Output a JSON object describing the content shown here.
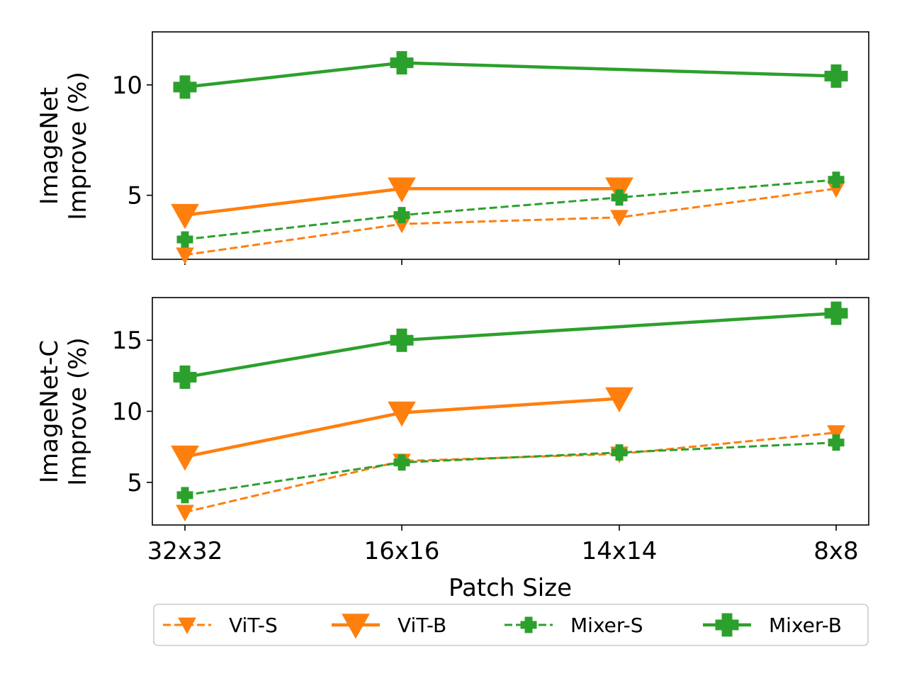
{
  "chart_data": [
    {
      "type": "line",
      "panel": "top",
      "ylabel_lines": [
        "ImageNet",
        "Improve (%)"
      ],
      "categories": [
        "32x32",
        "16x16",
        "14x14",
        "8x8"
      ],
      "ylim": [
        2.1,
        12.4
      ],
      "yticks": [
        5,
        10
      ],
      "grid": false,
      "series": [
        {
          "name": "ViT-S",
          "values": [
            2.3,
            3.7,
            4.0,
            5.3
          ]
        },
        {
          "name": "ViT-B",
          "values": [
            4.1,
            5.3,
            5.3,
            null
          ]
        },
        {
          "name": "Mixer-S",
          "values": [
            3.0,
            4.1,
            4.9,
            5.7
          ]
        },
        {
          "name": "Mixer-B",
          "values": [
            9.9,
            11.0,
            null,
            10.4
          ]
        }
      ]
    },
    {
      "type": "line",
      "panel": "bottom",
      "ylabel_lines": [
        "ImageNet-C",
        "Improve (%)"
      ],
      "xlabel": "Patch Size",
      "categories": [
        "32x32",
        "16x16",
        "14x14",
        "8x8"
      ],
      "ylim": [
        2.0,
        18.0
      ],
      "yticks": [
        5,
        10,
        15
      ],
      "grid": false,
      "series": [
        {
          "name": "ViT-S",
          "values": [
            2.9,
            6.5,
            7.0,
            8.5
          ]
        },
        {
          "name": "ViT-B",
          "values": [
            6.8,
            9.9,
            10.9,
            null
          ]
        },
        {
          "name": "Mixer-S",
          "values": [
            4.1,
            6.4,
            7.1,
            7.8
          ]
        },
        {
          "name": "Mixer-B",
          "values": [
            12.4,
            15.0,
            null,
            16.9
          ]
        }
      ]
    }
  ],
  "legend": {
    "placement": "bottom",
    "entries": [
      "ViT-S",
      "ViT-B",
      "Mixer-S",
      "Mixer-B"
    ]
  },
  "series_styles": {
    "ViT-S": {
      "color": "#ff7f0e",
      "dashed": true,
      "marker": "triangle-down-icon",
      "size": "small"
    },
    "ViT-B": {
      "color": "#ff7f0e",
      "dashed": false,
      "marker": "triangle-down-icon",
      "size": "large"
    },
    "Mixer-S": {
      "color": "#2ca02c",
      "dashed": true,
      "marker": "plus-icon",
      "size": "small"
    },
    "Mixer-B": {
      "color": "#2ca02c",
      "dashed": false,
      "marker": "plus-icon",
      "size": "large"
    }
  }
}
